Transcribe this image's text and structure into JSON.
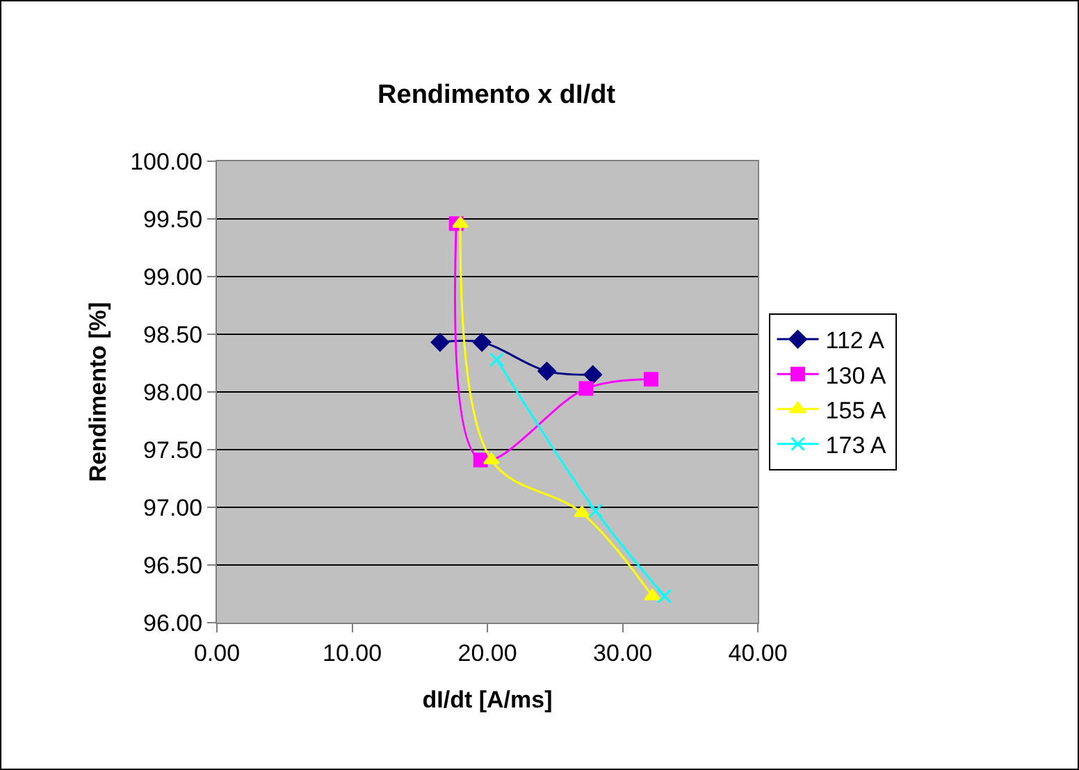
{
  "chart_data": {
    "type": "line",
    "title": "Rendimento x dI/dt",
    "xlabel": "dI/dt [A/ms]",
    "ylabel": "Rendimento [%]",
    "xlim": [
      0,
      40
    ],
    "xticks": [
      {
        "value": 0,
        "label": "0.00"
      },
      {
        "value": 10,
        "label": "10.00"
      },
      {
        "value": 20,
        "label": "20.00"
      },
      {
        "value": 30,
        "label": "30.00"
      },
      {
        "value": 40,
        "label": "40.00"
      }
    ],
    "ylim": [
      96,
      100
    ],
    "yticks": [
      {
        "value": 96,
        "label": "96.00"
      },
      {
        "value": 96.5,
        "label": "96.50"
      },
      {
        "value": 97,
        "label": "97.00"
      },
      {
        "value": 97.5,
        "label": "97.50"
      },
      {
        "value": 98,
        "label": "98.00"
      },
      {
        "value": 98.5,
        "label": "98.50"
      },
      {
        "value": 99,
        "label": "99.00"
      },
      {
        "value": 99.5,
        "label": "99.50"
      },
      {
        "value": 100,
        "label": "100.00"
      }
    ],
    "grid": "y",
    "legend": "right",
    "series": [
      {
        "name": "112 A",
        "color": "#000080",
        "marker": "diamond",
        "x": [
          16.5,
          19.6,
          24.4,
          27.8
        ],
        "values": [
          98.43,
          98.43,
          98.18,
          98.15
        ]
      },
      {
        "name": "130 A",
        "color": "#ff00ff",
        "marker": "square",
        "x": [
          17.7,
          19.5,
          27.3,
          32.1
        ],
        "values": [
          99.46,
          97.41,
          98.03,
          98.11
        ]
      },
      {
        "name": "155 A",
        "color": "#ffff00",
        "marker": "triangle",
        "x": [
          18.0,
          20.3,
          27.0,
          32.2
        ],
        "values": [
          99.46,
          97.41,
          96.95,
          96.23
        ]
      },
      {
        "name": "173 A",
        "color": "#00ffff",
        "marker": "cross",
        "x": [
          20.7,
          28.0,
          33.1
        ],
        "values": [
          98.28,
          96.97,
          96.23
        ]
      }
    ]
  }
}
